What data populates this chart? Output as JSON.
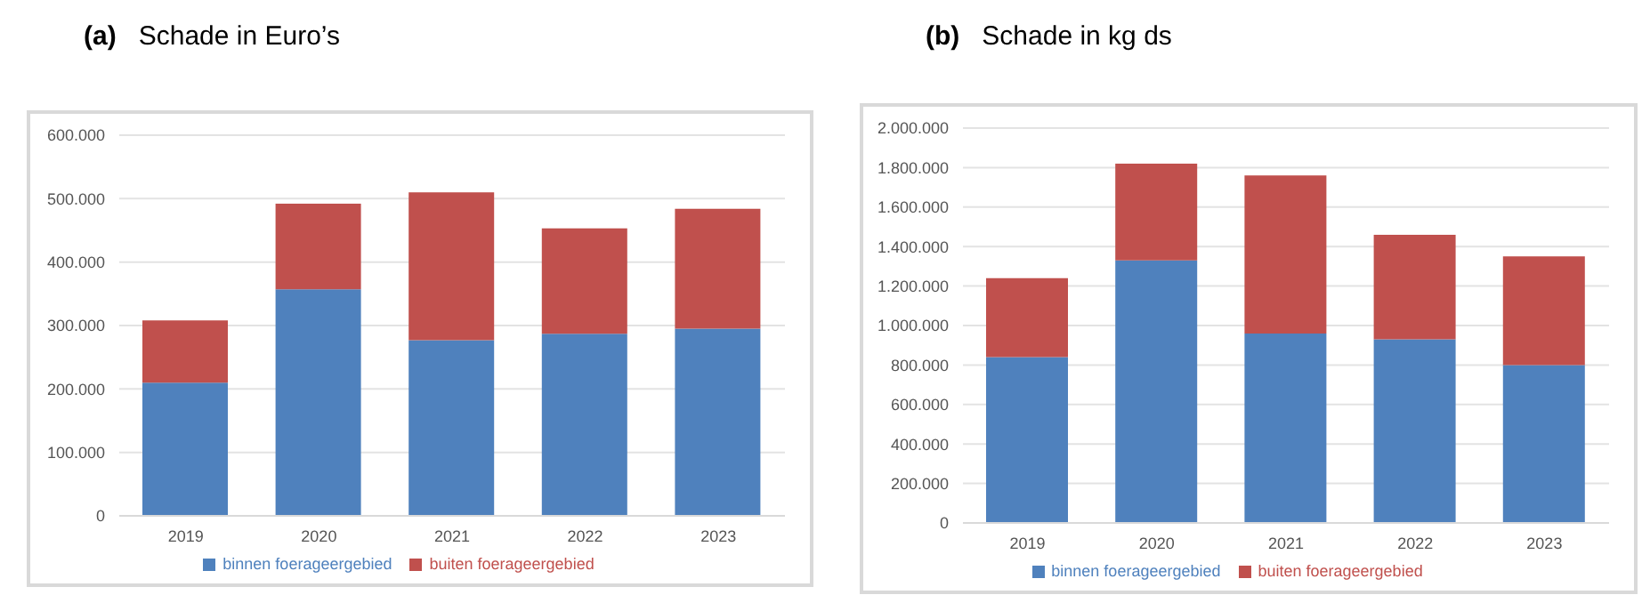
{
  "chart_data": [
    {
      "type": "bar",
      "title": "(a)   Schade in Euro’s",
      "categories": [
        "2019",
        "2020",
        "2021",
        "2022",
        "2023"
      ],
      "stacked": true,
      "series": [
        {
          "name": "binnen foerageergebied",
          "color": "#4f81bd",
          "values": [
            210000,
            357000,
            277000,
            287000,
            295000
          ]
        },
        {
          "name": "buiten foerageergebied",
          "color": "#c0504d",
          "values": [
            98000,
            135000,
            233000,
            166000,
            189000
          ]
        }
      ],
      "ylim": [
        0,
        600000
      ],
      "yticks": [
        {
          "value": 0,
          "label": "0"
        },
        {
          "value": 100000,
          "label": "100.000"
        },
        {
          "value": 200000,
          "label": "200.000"
        },
        {
          "value": 300000,
          "label": "300.000"
        },
        {
          "value": 400000,
          "label": "400.000"
        },
        {
          "value": 500000,
          "label": "500.000"
        },
        {
          "value": 600000,
          "label": "600.000"
        }
      ],
      "grid": "y",
      "legend": "bottom"
    },
    {
      "type": "bar",
      "title": "(b)   Schade in kg ds",
      "categories": [
        "2019",
        "2020",
        "2021",
        "2022",
        "2023"
      ],
      "stacked": true,
      "series": [
        {
          "name": "binnen foerageergebied",
          "color": "#4f81bd",
          "values": [
            840000,
            1330000,
            960000,
            930000,
            800000
          ]
        },
        {
          "name": "buiten foerageergebied",
          "color": "#c0504d",
          "values": [
            400000,
            490000,
            800000,
            530000,
            550000
          ]
        }
      ],
      "ylim": [
        0,
        2000000
      ],
      "yticks": [
        {
          "value": 0,
          "label": "0"
        },
        {
          "value": 200000,
          "label": "200.000"
        },
        {
          "value": 400000,
          "label": "400.000"
        },
        {
          "value": 600000,
          "label": "600.000"
        },
        {
          "value": 800000,
          "label": "800.000"
        },
        {
          "value": 1000000,
          "label": "1.000.000"
        },
        {
          "value": 1200000,
          "label": "1.200.000"
        },
        {
          "value": 1400000,
          "label": "1.400.000"
        },
        {
          "value": 1600000,
          "label": "1.600.000"
        },
        {
          "value": 1800000,
          "label": "1.800.000"
        },
        {
          "value": 2000000,
          "label": "2.000.000"
        }
      ],
      "grid": "y",
      "legend": "bottom"
    }
  ]
}
